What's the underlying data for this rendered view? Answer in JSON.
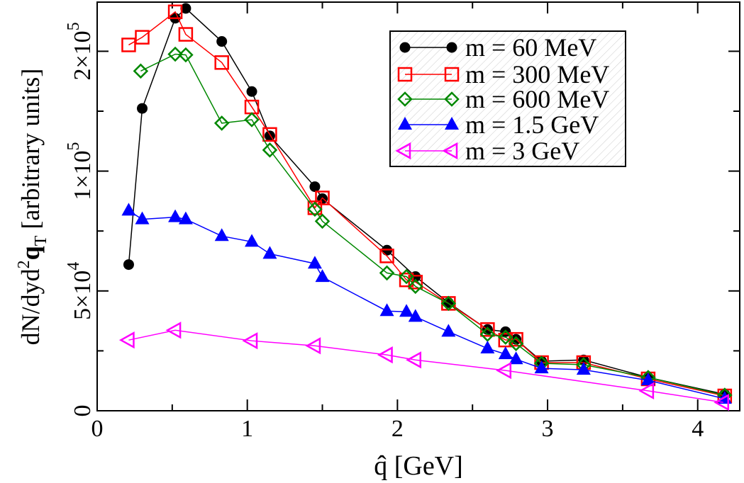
{
  "chart_data": {
    "type": "line",
    "title": "",
    "xlabel": "q̂ [GeV]",
    "ylabel": {
      "prefix": "dN/dyd",
      "sup": "2",
      "bold": "q",
      "sub": "T",
      "suffix": " [arbitrary units]"
    },
    "xlim": [
      0,
      4.28
    ],
    "ylim": [
      0,
      240000
    ],
    "x_ticks": [
      0,
      1,
      2,
      3,
      4
    ],
    "x_tick_labels": [
      "0",
      "1",
      "2",
      "3",
      "4"
    ],
    "x_minor_ticks": [
      0.5,
      1.5,
      2.5,
      3.5
    ],
    "y_scale": "piecewise-linear (equal spacing between ticks 0, 25000, 50000, 75000, 100000, 150000, 200000)",
    "y_scale_ticks": [
      0,
      25000,
      50000,
      75000,
      100000,
      150000,
      200000
    ],
    "y_labeled_ticks": [
      {
        "value": 0,
        "mant": "0",
        "exp": ""
      },
      {
        "value": 50000,
        "mant": "5×10",
        "exp": "4"
      },
      {
        "value": 100000,
        "mant": "1×10",
        "exp": "5"
      },
      {
        "value": 200000,
        "mant": "2×10",
        "exp": "5"
      }
    ],
    "grid": false,
    "legend_placement": "top-right",
    "series": [
      {
        "name": "m = 60 MeV",
        "color": "#000000",
        "marker": "filled-circle",
        "x": [
          0.21,
          0.3,
          0.52,
          0.59,
          0.83,
          1.03,
          1.15,
          1.45,
          1.5,
          1.93,
          2.12,
          2.34,
          2.6,
          2.72,
          2.79,
          2.96,
          3.24,
          3.67,
          4.18
        ],
        "y": [
          61000,
          152300,
          227600,
          235800,
          208200,
          166400,
          129400,
          93500,
          88500,
          67000,
          56000,
          45100,
          33900,
          33000,
          29800,
          20700,
          21200,
          13900,
          6900
        ]
      },
      {
        "name": "m = 300 MeV",
        "color": "#ff0000",
        "marker": "open-square",
        "x": [
          0.21,
          0.3,
          0.52,
          0.59,
          0.83,
          1.03,
          1.15,
          1.45,
          1.5,
          1.93,
          2.06,
          2.12,
          2.34,
          2.6,
          2.72,
          2.79,
          2.96,
          3.24,
          3.67,
          4.18
        ],
        "y": [
          205300,
          211700,
          232900,
          214100,
          190600,
          153500,
          130600,
          84700,
          88800,
          64600,
          54600,
          53700,
          44800,
          33900,
          29500,
          29800,
          20100,
          20100,
          13300,
          6200
        ]
      },
      {
        "name": "m = 600 MeV",
        "color": "#008800",
        "marker": "open-diamond",
        "x": [
          0.29,
          0.52,
          0.59,
          0.83,
          1.03,
          1.15,
          1.45,
          1.5,
          1.93,
          2.06,
          2.12,
          2.34,
          2.6,
          2.72,
          2.79,
          2.96,
          3.24,
          3.67,
          4.18
        ],
        "y": [
          183500,
          197600,
          197000,
          140000,
          142900,
          117600,
          84100,
          79100,
          57500,
          56000,
          51900,
          44800,
          31900,
          30700,
          28000,
          19800,
          19200,
          13900,
          6500
        ]
      },
      {
        "name": "m = 1.5 GeV",
        "color": "#0000ff",
        "marker": "filled-triangle-up",
        "x": [
          0.21,
          0.3,
          0.52,
          0.59,
          0.83,
          1.03,
          1.15,
          1.45,
          1.5,
          1.93,
          2.06,
          2.12,
          2.34,
          2.6,
          2.72,
          2.79,
          2.96,
          3.24,
          3.67,
          4.18
        ],
        "y": [
          83500,
          79900,
          80800,
          79900,
          72900,
          70500,
          65500,
          61400,
          55800,
          41600,
          41300,
          39200,
          33000,
          26000,
          23600,
          21500,
          17700,
          17100,
          12700,
          5000
        ]
      },
      {
        "name": "m = 3 GeV",
        "color": "#ff00ff",
        "marker": "open-triangle-left",
        "x": [
          0.21,
          0.52,
          1.03,
          1.45,
          1.93,
          2.12,
          2.72,
          3.67,
          4.17
        ],
        "y": [
          29500,
          33600,
          29200,
          27100,
          23300,
          21200,
          16800,
          8300,
          3500
        ]
      }
    ]
  }
}
